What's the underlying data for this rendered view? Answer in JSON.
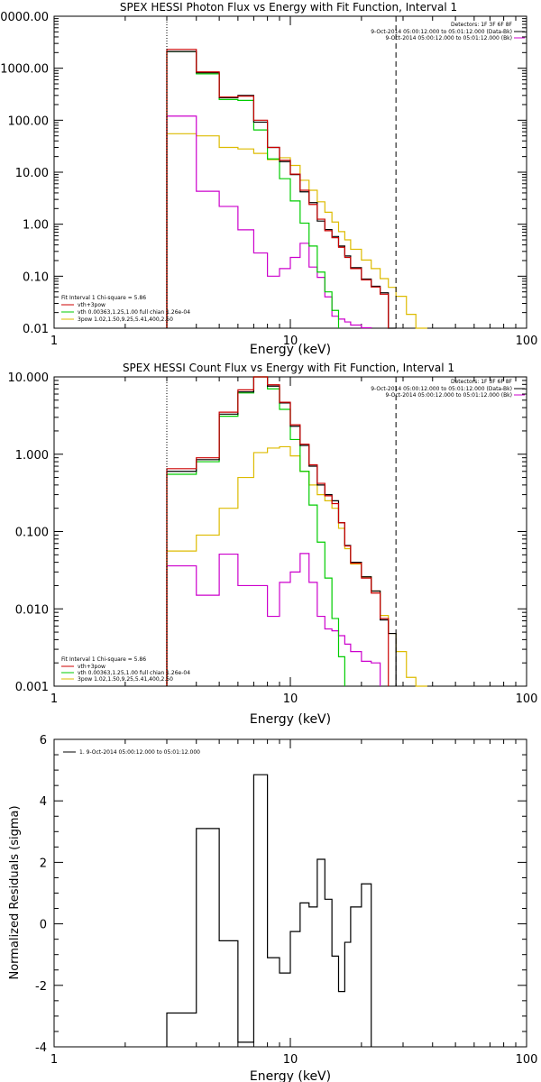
{
  "colors": {
    "data": "#000000",
    "total": "#cc0000",
    "vth": "#00cc00",
    "bkg": "#cc00cc",
    "3pow": "#ddbb00"
  },
  "chart_data": [
    {
      "type": "line",
      "title": "SPEX HESSI Photon Flux vs Energy with Fit Function, Interval 1",
      "xlabel": "Energy (keV)",
      "ylabel": "",
      "xscale": "log",
      "yscale": "log",
      "xlim": [
        1,
        100
      ],
      "ylim": [
        0.01,
        10000
      ],
      "yticks": [
        "0.01",
        "0.10",
        "1.00",
        "10.00",
        "100.00",
        "1000.00",
        "10000.00"
      ],
      "xticks": [
        "1",
        "10",
        "100"
      ],
      "vlines": [
        3,
        28
      ],
      "legend_right": [
        "Detectors: 1F 3F 6F 8F",
        "9-Oct-2014 05:00:12.000 to 05:01:12.000 (Data-Bk)",
        "9-Oct-2014 05:00:12.000 to 05:01:12.000 (Bk)"
      ],
      "legend_left": [
        "Fit Interval 1    Chi-square = 5.86",
        "vth+3pow",
        "vth 0.00363,1.25,1.00  full chian 1.26e-04",
        "3pow 1.02,1.50,9.25,5.41,400,2.50"
      ],
      "edges": [
        3,
        4,
        5,
        6,
        7,
        8,
        9,
        10,
        11,
        12,
        13,
        14,
        15,
        16,
        17,
        18,
        20,
        22,
        24,
        26,
        28,
        31,
        34,
        38
      ],
      "series": [
        {
          "name": "",
          "color_key": "data",
          "values": [
            2100,
            820,
            270,
            300,
            92,
            30,
            16,
            9,
            4.2,
            2.6,
            1.15,
            0.79,
            0.58,
            0.38,
            0.245,
            0.146,
            0.088,
            0.064,
            0.048,
            0.0085
          ]
        },
        {
          "name": "",
          "color_key": "total",
          "values": [
            2300,
            850,
            280,
            290,
            100,
            30,
            17,
            9.2,
            4.5,
            2.4,
            1.25,
            0.75,
            0.55,
            0.36,
            0.23,
            0.14,
            0.085,
            0.062,
            0.045
          ]
        },
        {
          "name": "",
          "color_key": "vth",
          "values": [
            2100,
            780,
            250,
            240,
            65,
            18,
            7.5,
            2.8,
            1.05,
            0.38,
            0.12,
            0.05,
            0.022
          ]
        },
        {
          "name": "",
          "color_key": "3pow",
          "values": [
            55,
            50,
            30,
            28,
            23,
            17.5,
            19,
            13.5,
            7,
            4.5,
            2.7,
            1.7,
            1.1,
            0.72,
            0.5,
            0.33,
            0.205,
            0.14,
            0.09,
            0.061,
            0.041,
            0.0185,
            0.0085
          ]
        },
        {
          "name": "",
          "color_key": "bkg",
          "values": [
            120,
            4.3,
            2.2,
            0.78,
            0.28,
            0.1,
            0.14,
            0.23,
            0.43,
            0.15,
            0.095,
            0.04,
            0.017,
            0.015,
            0.0132,
            0.0115,
            0.0102
          ]
        }
      ]
    },
    {
      "type": "line",
      "title": "SPEX HESSI Count Flux vs Energy with Fit Function, Interval 1",
      "xlabel": "Energy (keV)",
      "ylabel": "",
      "xscale": "log",
      "yscale": "log",
      "xlim": [
        1,
        100
      ],
      "ylim": [
        0.001,
        10
      ],
      "yticks": [
        "0.001",
        "0.010",
        "0.100",
        "1.000",
        "10.000"
      ],
      "xticks": [
        "1",
        "10",
        "100"
      ],
      "vlines": [
        3,
        28
      ],
      "legend_right": [
        "Detectors: 1F 3F 6F 8F",
        "9-Oct-2014 05:00:12.000 to 05:01:12.000 (Data-Bk)",
        "9-Oct-2014 05:00:12.000 to 05:01:12.000 (Bk)"
      ],
      "legend_left": [
        "Fit Interval 1    Chi-square = 5.86",
        "vth+3pow",
        "vth 0.00363,1.25,1.00  full chian 1.26e-04",
        "3pow 1.02,1.50,9.25,5.41,400,2.50"
      ],
      "edges": [
        3,
        4,
        5,
        6,
        7,
        8,
        9,
        10,
        11,
        12,
        13,
        14,
        15,
        16,
        17,
        18,
        20,
        22,
        24,
        26,
        28,
        31,
        34,
        38
      ],
      "series": [
        {
          "name": "",
          "color_key": "data",
          "values": [
            0.6,
            0.85,
            3.3,
            6.4,
            10.5,
            7.6,
            4.6,
            2.3,
            1.3,
            0.7,
            0.4,
            0.3,
            0.25,
            0.13,
            0.066,
            0.04,
            0.026,
            0.017,
            0.0072,
            0.0048
          ]
        },
        {
          "name": "",
          "color_key": "total",
          "values": [
            0.65,
            0.9,
            3.5,
            6.8,
            11,
            7.9,
            4.7,
            2.4,
            1.35,
            0.73,
            0.42,
            0.29,
            0.23,
            0.13,
            0.065,
            0.039,
            0.025,
            0.016,
            0.0075
          ]
        },
        {
          "name": "",
          "color_key": "vth",
          "values": [
            0.55,
            0.8,
            3.1,
            6.2,
            10,
            7,
            3.8,
            1.55,
            0.6,
            0.22,
            0.073,
            0.025,
            0.0075,
            0.0024
          ]
        },
        {
          "name": "",
          "color_key": "3pow",
          "values": [
            0.056,
            0.09,
            0.2,
            0.5,
            1.05,
            1.2,
            1.25,
            0.95,
            0.6,
            0.4,
            0.3,
            0.25,
            0.2,
            0.11,
            0.06,
            0.038,
            0.026,
            0.017,
            0.0082,
            0.0048,
            0.0028,
            0.0013,
            0.0006
          ]
        },
        {
          "name": "",
          "color_key": "bkg",
          "values": [
            0.036,
            0.015,
            0.051,
            0.02,
            0.02,
            0.008,
            0.022,
            0.03,
            0.052,
            0.022,
            0.008,
            0.0055,
            0.0052,
            0.0045,
            0.0035,
            0.0028,
            0.0021,
            0.002
          ]
        }
      ]
    },
    {
      "type": "line",
      "title": "",
      "xlabel": "Energy (keV)",
      "ylabel": "Normalized Residuals (sigma)",
      "xscale": "log",
      "yscale": "linear",
      "xlim": [
        1,
        100
      ],
      "ylim": [
        -4,
        6
      ],
      "yticks": [
        "-4",
        "-2",
        "0",
        "2",
        "4",
        "6"
      ],
      "xticks": [
        "1",
        "10",
        "100"
      ],
      "legend_left": [
        "1.  9-Oct-2014 05:00:12.000 to 05:01:12.000"
      ],
      "edges": [
        3,
        4,
        5,
        6,
        7,
        8,
        9,
        10,
        11,
        12,
        13,
        14,
        15,
        16,
        17,
        18,
        20,
        22,
        24,
        26,
        28
      ],
      "series": [
        {
          "name": "",
          "color_key": "data",
          "values": [
            -2.9,
            3.1,
            -0.55,
            -3.85,
            4.85,
            -1.1,
            -1.6,
            -0.25,
            0.68,
            0.55,
            2.1,
            0.8,
            -1.05,
            -2.2,
            -0.6,
            0.55,
            1.3
          ]
        }
      ]
    }
  ]
}
